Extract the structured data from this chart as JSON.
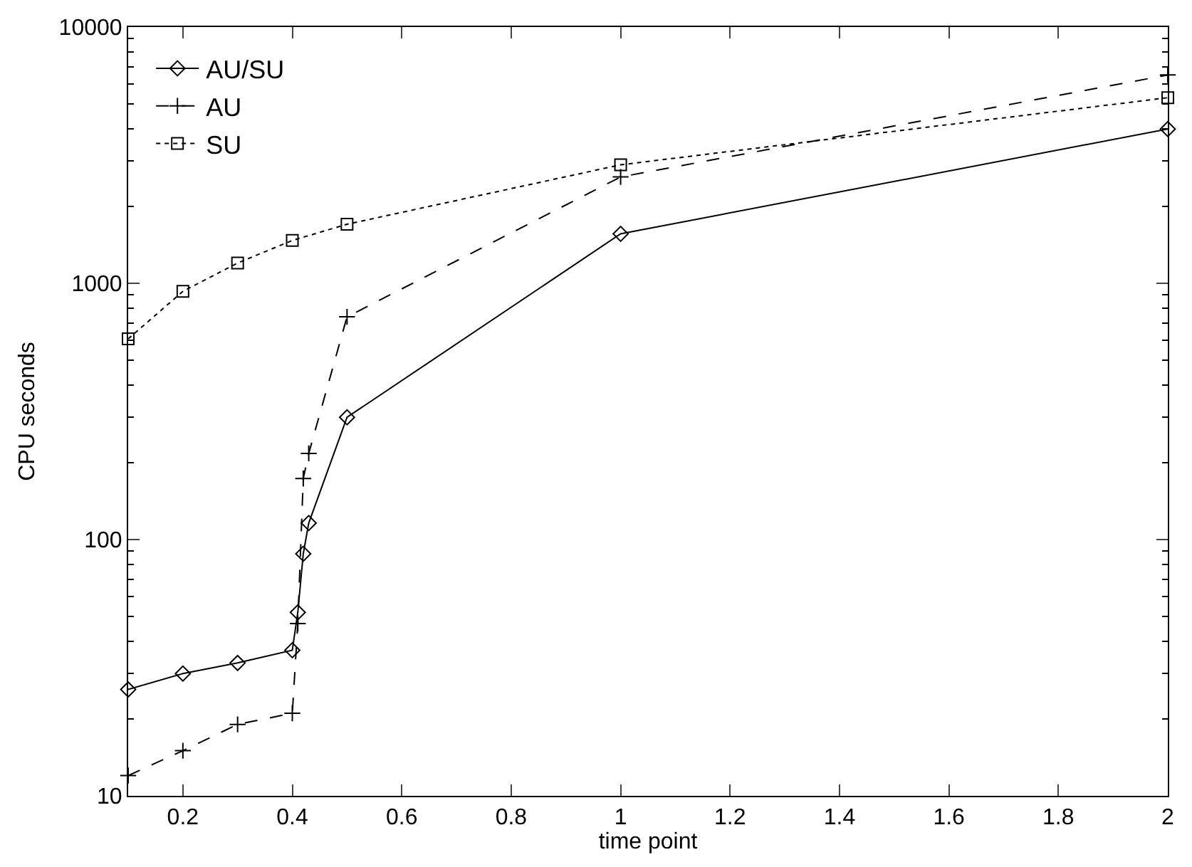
{
  "chart_data": {
    "type": "line",
    "xlabel": "time point",
    "ylabel": "CPU seconds",
    "log": "y",
    "xlim": [
      0.1,
      2
    ],
    "xticks": [
      0.2,
      0.4,
      0.6,
      0.8,
      1,
      1.2,
      1.4,
      1.6,
      1.8,
      2
    ],
    "ylim": [
      10,
      10000
    ],
    "yticks": [
      10,
      100,
      1000,
      10000
    ],
    "legend": "top left",
    "series": [
      {
        "name": "AU/SU",
        "color": "#000000",
        "marker": "diamond",
        "line_style": "solid",
        "x": [
          0.1,
          0.2,
          0.3,
          0.4,
          0.41,
          0.42,
          0.43,
          0.5,
          1,
          2
        ],
        "values": [
          26,
          30,
          33,
          37,
          52,
          88,
          116,
          300,
          1560,
          4000
        ]
      },
      {
        "name": "AU",
        "color": "#000000",
        "marker": "cross",
        "line_style": "dashed",
        "x": [
          0.1,
          0.2,
          0.3,
          0.4,
          0.41,
          0.42,
          0.43,
          0.5,
          1,
          2
        ],
        "values": [
          12,
          15,
          19,
          21,
          47,
          173,
          217,
          740,
          2600,
          6500
        ]
      },
      {
        "name": "SU",
        "color": "#000000",
        "marker": "square",
        "line_style": "dotted",
        "x": [
          0.1,
          0.2,
          0.3,
          0.4,
          0.5,
          1,
          2
        ],
        "values": [
          607,
          930,
          1200,
          1470,
          1700,
          2900,
          5300
        ]
      }
    ]
  }
}
